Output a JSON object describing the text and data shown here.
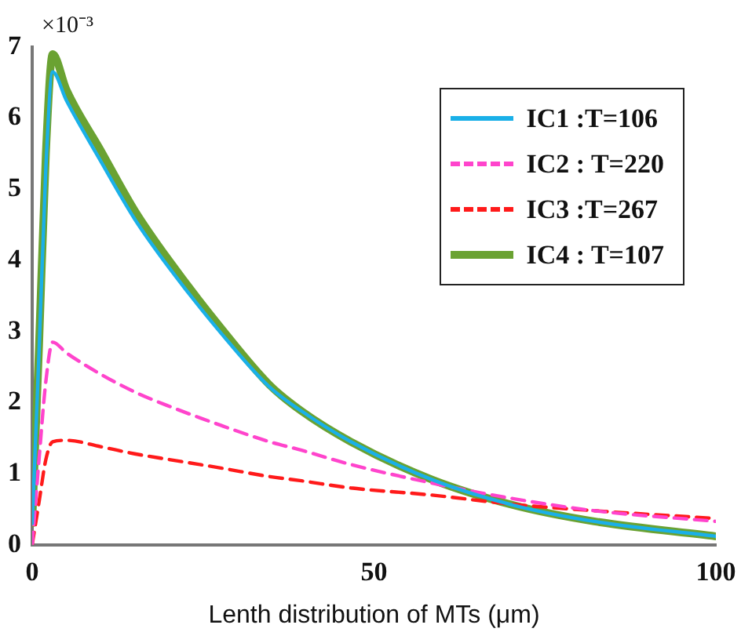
{
  "chart_data": {
    "type": "line",
    "xlabel": "Lenth distribution of MTs (μm)",
    "annotations": [
      "×10⁻³"
    ],
    "x": [
      0,
      1,
      2,
      3,
      5,
      10,
      15,
      20,
      27.6,
      34.7,
      39.4,
      46.6,
      58.4,
      70.3,
      82.2,
      100
    ],
    "series": [
      {
        "name": "IC1 :T=106",
        "color": "#1ab0e8",
        "line_style": "solid",
        "values": [
          0.3,
          2.7,
          5.3,
          6.65,
          6.25,
          5.4,
          4.58,
          3.9,
          2.98,
          2.22,
          1.88,
          1.45,
          0.92,
          0.56,
          0.33,
          0.12
        ]
      },
      {
        "name": "IC2 : T=220",
        "color": "#ff44cc",
        "line_style": "dashed",
        "values": [
          0,
          1.2,
          2.3,
          2.85,
          2.7,
          2.4,
          2.15,
          1.95,
          1.68,
          1.45,
          1.33,
          1.13,
          0.87,
          0.65,
          0.48,
          0.33
        ]
      },
      {
        "name": "IC3 :T=267",
        "color": "#ff1a1a",
        "line_style": "dashed",
        "values": [
          0,
          0.6,
          1.2,
          1.45,
          1.47,
          1.38,
          1.28,
          1.2,
          1.08,
          0.96,
          0.9,
          0.8,
          0.7,
          0.57,
          0.48,
          0.37
        ]
      },
      {
        "name": "IC4 : T=107",
        "color": "#6aa232",
        "line_style": "solid",
        "values": [
          0.3,
          2.8,
          5.5,
          6.9,
          6.4,
          5.55,
          4.7,
          4.0,
          3.05,
          2.25,
          1.88,
          1.45,
          0.92,
          0.56,
          0.33,
          0.12
        ]
      }
    ],
    "xlim": [
      0,
      100
    ],
    "xticks": [
      0,
      50,
      100
    ],
    "ylim": [
      0,
      7
    ],
    "yticks": [
      0,
      1,
      2,
      3,
      4,
      5,
      6,
      7
    ],
    "grid": false,
    "legend": "top right",
    "marker": "none"
  }
}
